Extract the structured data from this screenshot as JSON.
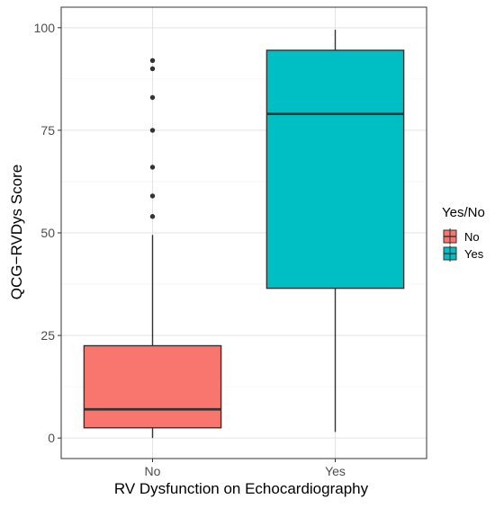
{
  "chart_data": {
    "type": "box",
    "xlabel": "RV Dysfunction on Echocardiography",
    "ylabel": "QCG−RVDys Score",
    "ylim": [
      -5,
      105
    ],
    "yticks": [
      0,
      25,
      50,
      75,
      100
    ],
    "grid": true,
    "legend": {
      "title": "Yes/No",
      "position": "right",
      "entries": [
        "No",
        "Yes"
      ]
    },
    "categories": [
      "No",
      "Yes"
    ],
    "series": [
      {
        "name": "No",
        "color": "#F8766D",
        "whisker_low": 0,
        "q1": 2.5,
        "median": 7,
        "q3": 22.5,
        "whisker_high": 49.5,
        "outliers": [
          54,
          59,
          66,
          75,
          83,
          90,
          92
        ]
      },
      {
        "name": "Yes",
        "color": "#00BFC4",
        "whisker_low": 1.5,
        "q1": 36.5,
        "median": 79,
        "q3": 94.5,
        "whisker_high": 99.5,
        "outliers": []
      }
    ]
  }
}
